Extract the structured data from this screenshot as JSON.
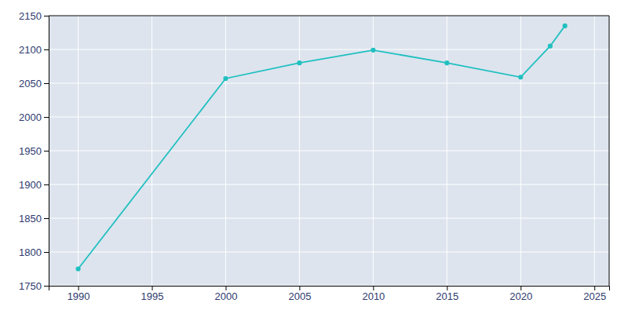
{
  "chart_data": {
    "type": "line",
    "x": [
      1990,
      2000,
      2005,
      2010,
      2015,
      2020,
      2022,
      2023
    ],
    "values": [
      1775,
      2057,
      2080,
      2099,
      2080,
      2059,
      2105,
      2135
    ],
    "color": "#20c0c0",
    "marker": "circle",
    "xlim": [
      1988,
      2026
    ],
    "ylim": [
      1750,
      2150
    ],
    "xticks": [
      1990,
      1995,
      2000,
      2005,
      2010,
      2015,
      2020,
      2025
    ],
    "yticks": [
      1750,
      1800,
      1850,
      1900,
      1950,
      2000,
      2050,
      2100,
      2150
    ],
    "grid": true
  }
}
